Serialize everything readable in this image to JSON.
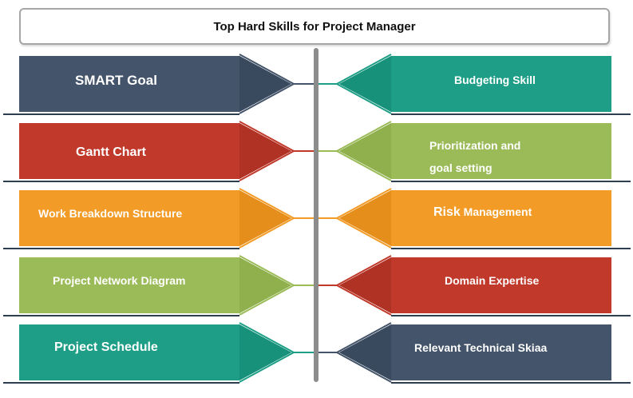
{
  "title": "Top Hard Skills for Project Manager",
  "left_items": [
    {
      "label": "SMART Goal",
      "color": "#44546a"
    },
    {
      "label": "Gantt Chart",
      "color": "#c0392b"
    },
    {
      "label": "Work Breakdown Structure",
      "color": "#f29b26"
    },
    {
      "label": "Project Network Diagram",
      "color": "#9bbb59"
    },
    {
      "label": "Project Schedule",
      "color": "#1e9e86"
    }
  ],
  "right_items": [
    {
      "label": "Budgeting Skill",
      "color": "#1e9e86"
    },
    {
      "label_line1": "Prioritization and",
      "label_line2": "goal setting",
      "color": "#9bbb59"
    },
    {
      "label_prefix": "Risk",
      "label_rest": " Management",
      "color": "#f29b26"
    },
    {
      "label": "Domain Expertise",
      "color": "#c0392b"
    },
    {
      "label": "Relevant Technical Skiaa",
      "color": "#44546a"
    }
  ],
  "colors": {
    "spine": "#8c8c8c",
    "title_border": "#a6a6a6",
    "base_line": "#2c3e50"
  }
}
